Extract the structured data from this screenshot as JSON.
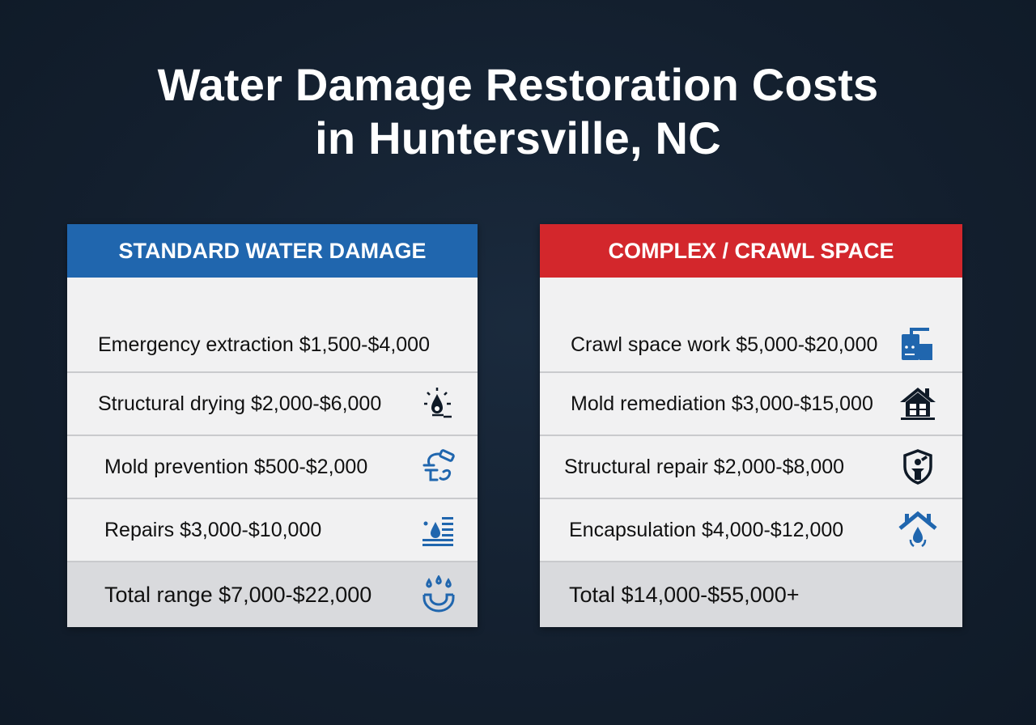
{
  "title_line1": "Water Damage Restoration Costs",
  "title_line2": "in Huntersville, NC",
  "colors": {
    "background": "#131f2e",
    "standard_header": "#2066ae",
    "complex_header": "#d3272c",
    "icon_blue": "#2066ae",
    "icon_dark": "#0f1a27"
  },
  "standard": {
    "header": "STANDARD WATER DAMAGE",
    "rows": [
      {
        "label": "Emergency extraction $1,500-$4,000",
        "icon": "none"
      },
      {
        "label": "Structural drying $2,000-$6,000",
        "icon": "water-drop-sun-icon"
      },
      {
        "label": "Mold prevention $500-$2,000",
        "icon": "spray-hand-icon"
      },
      {
        "label": "Repairs $3,000-$10,000",
        "icon": "flood-wall-icon"
      },
      {
        "label": "Total range $7,000-$22,000",
        "icon": "drops-pipe-icon"
      }
    ]
  },
  "complex": {
    "header": "COMPLEX / CRAWL SPACE",
    "rows": [
      {
        "label": "Crawl space work $5,000-$20,000",
        "icon": "machine-icon"
      },
      {
        "label": "Mold remediation $3,000-$15,000",
        "icon": "house-icon"
      },
      {
        "label": "Structural repair  $2,000-$8,000",
        "icon": "shield-worker-icon"
      },
      {
        "label": "Encapsulation $4,000-$12,000",
        "icon": "roof-drop-icon"
      },
      {
        "label": "Total $14,000-$55,000+",
        "icon": "none"
      }
    ]
  }
}
